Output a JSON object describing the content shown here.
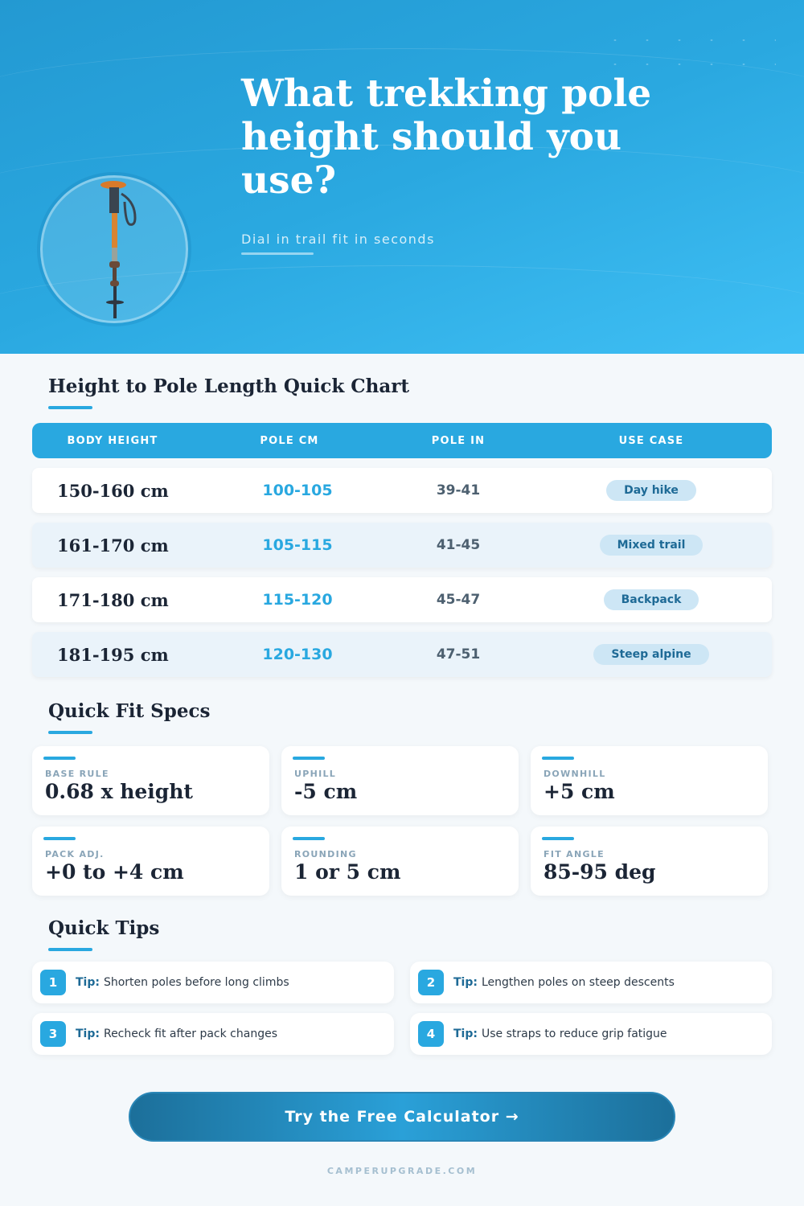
{
  "hero": {
    "title": "What trekking pole height should you use?",
    "subtitle": "Dial in trail fit in seconds",
    "image": "trekking-pole"
  },
  "chart_section": {
    "title": "Height to Pole Length Quick Chart",
    "headers": [
      "BODY HEIGHT",
      "POLE CM",
      "POLE IN",
      "USE CASE"
    ],
    "rows": [
      {
        "height": "150-160 cm",
        "cm": "100-105",
        "in": "39-41",
        "use": "Day hike"
      },
      {
        "height": "161-170 cm",
        "cm": "105-115",
        "in": "41-45",
        "use": "Mixed trail"
      },
      {
        "height": "171-180 cm",
        "cm": "115-120",
        "in": "45-47",
        "use": "Backpack"
      },
      {
        "height": "181-195 cm",
        "cm": "120-130",
        "in": "47-51",
        "use": "Steep alpine"
      }
    ]
  },
  "specs": {
    "title": "Quick Fit Specs",
    "items": [
      {
        "label": "BASE RULE",
        "value": "0.68 x height"
      },
      {
        "label": "UPHILL",
        "value": "-5 cm"
      },
      {
        "label": "DOWNHILL",
        "value": "+5 cm"
      },
      {
        "label": "PACK ADJ.",
        "value": "+0 to +4 cm"
      },
      {
        "label": "ROUNDING",
        "value": "1 or 5 cm"
      },
      {
        "label": "FIT ANGLE",
        "value": "85-95 deg"
      }
    ]
  },
  "tips": {
    "title": "Quick Tips",
    "prefix": "Tip:",
    "items": [
      {
        "n": "1",
        "text": "Shorten poles before long climbs"
      },
      {
        "n": "2",
        "text": "Lengthen poles on steep descents"
      },
      {
        "n": "3",
        "text": "Recheck fit after pack changes"
      },
      {
        "n": "4",
        "text": "Use straps to reduce grip fatigue"
      }
    ]
  },
  "cta": {
    "label": "Try the Free Calculator →"
  },
  "footer": {
    "text": "CAMPERUPGRADE.COM"
  },
  "colors": {
    "accent": "#29a8e0",
    "dark": "#1b2535",
    "badge": "#cde6f5"
  }
}
